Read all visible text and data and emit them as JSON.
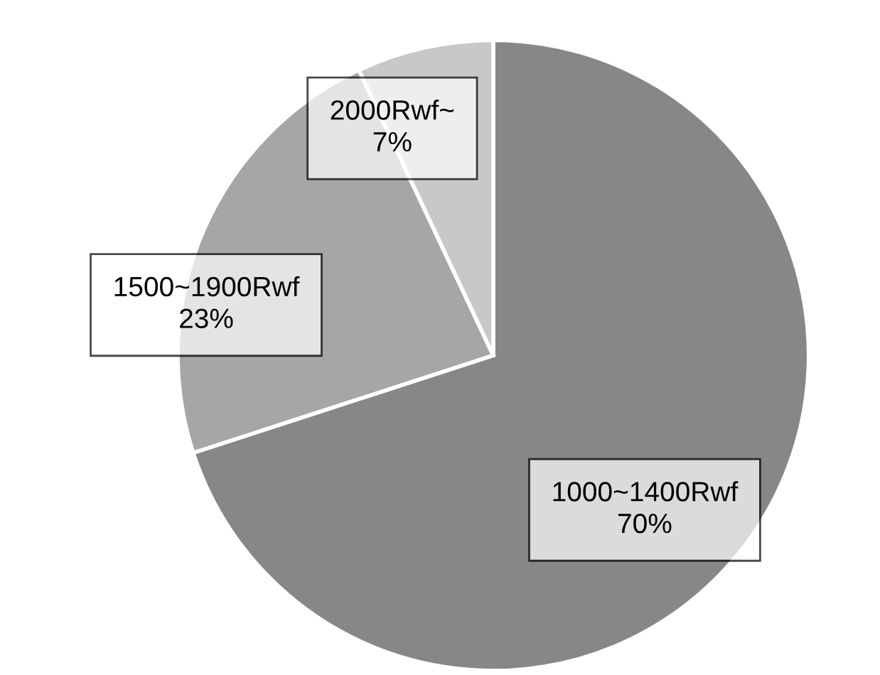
{
  "chart_data": {
    "type": "pie",
    "categories": [
      "1000~1400Rwf",
      "1500~1900Rwf",
      "2000Rwf~"
    ],
    "values": [
      70,
      23,
      7
    ],
    "colors": [
      "#878787",
      "#a6a6a6",
      "#c8c8c8"
    ],
    "value_labels": [
      "70%",
      "23%",
      "7%"
    ],
    "legend": false
  }
}
